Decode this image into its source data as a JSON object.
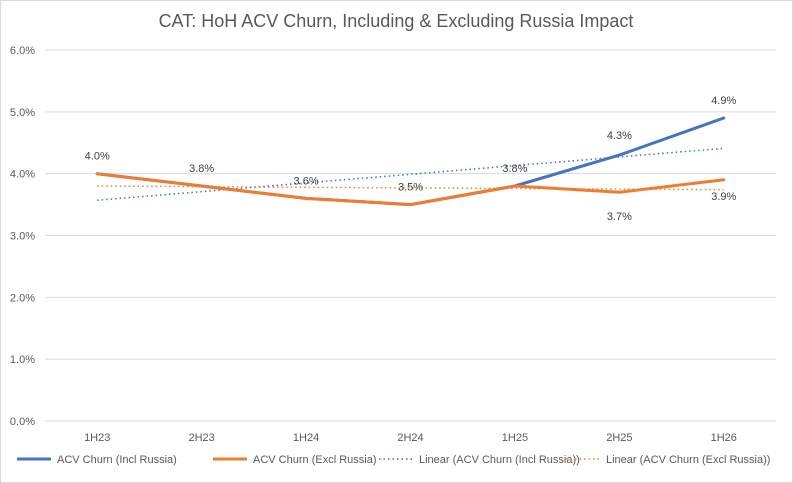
{
  "chart_data": {
    "type": "line",
    "title": "CAT: HoH ACV Churn, Including & Excluding Russia Impact",
    "xlabel": "",
    "ylabel": "",
    "categories": [
      "1H23",
      "2H23",
      "1H24",
      "2H24",
      "1H25",
      "2H25",
      "1H26"
    ],
    "ylim": [
      0,
      0.06
    ],
    "y_ticks": [
      0,
      0.01,
      0.02,
      0.03,
      0.04,
      0.05,
      0.06
    ],
    "y_tick_labels": [
      "0.0%",
      "1.0%",
      "2.0%",
      "3.0%",
      "4.0%",
      "5.0%",
      "6.0%"
    ],
    "grid": true,
    "legend_position": "bottom",
    "series": [
      {
        "name": "ACV Churn (Incl Russia)",
        "values": [
          0.04,
          0.038,
          0.036,
          0.035,
          0.038,
          0.043,
          0.049
        ],
        "color": "#4472c4",
        "style": "solid",
        "data_labels": [
          "",
          "",
          "",
          "",
          "",
          "4.3%",
          "4.9%"
        ]
      },
      {
        "name": "ACV Churn (Excl Russia)",
        "values": [
          0.04,
          0.038,
          0.036,
          0.035,
          0.038,
          0.037,
          0.039
        ],
        "color": "#ed7d31",
        "style": "solid",
        "data_labels": [
          "4.0%",
          "3.8%",
          "3.6%",
          "3.5%",
          "3.8%",
          "3.7%",
          "3.9%"
        ]
      },
      {
        "name": "Linear (ACV Churn (Incl Russia))",
        "values": [
          0.0357,
          0.0371,
          0.0385,
          0.0399,
          0.0413,
          0.0427,
          0.0441
        ],
        "color": "#4472c4",
        "style": "dotted",
        "data_labels": []
      },
      {
        "name": "Linear (ACV Churn (Excl Russia))",
        "values": [
          0.038,
          0.0379,
          0.0378,
          0.0377,
          0.0376,
          0.0375,
          0.0374
        ],
        "color": "#ed7d31",
        "style": "dotted",
        "data_labels": []
      }
    ]
  }
}
